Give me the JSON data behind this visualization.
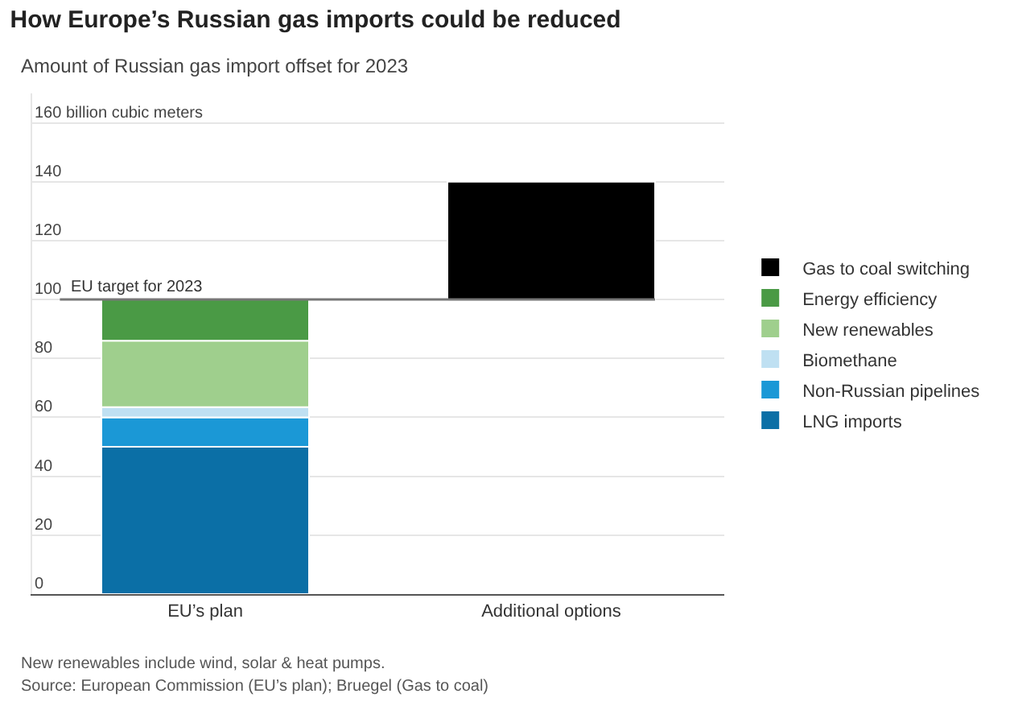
{
  "chart_data": {
    "type": "bar",
    "title": "How Europe’s Russian gas imports could be reduced",
    "subtitle": "Amount of Russian gas import offset for 2023",
    "categories": [
      "EU’s plan",
      "Additional options"
    ],
    "stacked": true,
    "series": [
      {
        "name": "LNG imports",
        "color": "#0b6fa6",
        "values": [
          50,
          null
        ]
      },
      {
        "name": "Non-Russian pipelines",
        "color": "#1b98d6",
        "values": [
          10,
          null
        ]
      },
      {
        "name": "Biomethane",
        "color": "#bfe0f2",
        "values": [
          3.5,
          null
        ]
      },
      {
        "name": "New renewables",
        "color": "#9fcf8d",
        "values": [
          22.5,
          null
        ]
      },
      {
        "name": "Energy efficiency",
        "color": "#4a9a45",
        "values": [
          14,
          null
        ]
      },
      {
        "name": "Gas to coal switching",
        "color": "#000000",
        "values": [
          null,
          40
        ],
        "base": [
          null,
          100
        ]
      }
    ],
    "ylim": [
      0,
      170
    ],
    "yticks": [
      0,
      20,
      40,
      60,
      80,
      100,
      120,
      140,
      {
        "value": 160,
        "label": "160 billion cubic meters"
      }
    ],
    "grid": "y",
    "legend": "right",
    "ref_lines": [
      {
        "axis": "y",
        "value": 100,
        "label": "EU target for 2023",
        "color": "#777777"
      }
    ],
    "annotations": [
      "New renewables include wind, solar & heat pumps.",
      "Source: European Commission (EU’s plan); Bruegel (Gas to coal)"
    ]
  }
}
